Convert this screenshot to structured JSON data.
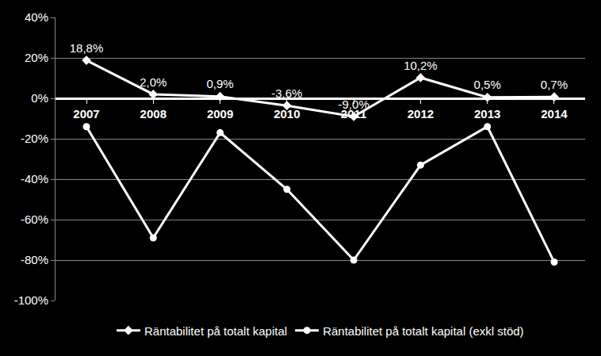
{
  "chart_data": {
    "type": "line",
    "categories": [
      "2007",
      "2008",
      "2009",
      "2010",
      "2011",
      "2012",
      "2013",
      "2014"
    ],
    "series": [
      {
        "name": "Räntabilitet på totalt kapital",
        "color": "#ffffff",
        "marker": "diamond",
        "data_labels": true,
        "values": [
          18.8,
          2.0,
          0.9,
          -3.6,
          -9.0,
          10.2,
          0.5,
          0.7
        ],
        "value_labels": [
          "18,8%",
          "2,0%",
          "0,9%",
          "-3,6%",
          "-9,0%",
          "10,2%",
          "0,5%",
          "0,7%"
        ]
      },
      {
        "name": "Räntabilitet på totalt kapital (exkl stöd)",
        "color": "#ffffff",
        "marker": "circle",
        "values": [
          -14,
          -69,
          -17,
          -45,
          -80,
          -33,
          -14,
          -81
        ]
      }
    ],
    "ylim": [
      -100,
      40
    ],
    "yticks": [
      {
        "value": -100,
        "label": "-100%"
      },
      {
        "value": -80,
        "label": "-80%"
      },
      {
        "value": -60,
        "label": "-60%"
      },
      {
        "value": -40,
        "label": "-40%"
      },
      {
        "value": -20,
        "label": "-20%"
      },
      {
        "value": 0,
        "label": "0%"
      },
      {
        "value": 20,
        "label": "20%"
      },
      {
        "value": 40,
        "label": "40%"
      }
    ],
    "grid": true,
    "legend": "bottom"
  }
}
